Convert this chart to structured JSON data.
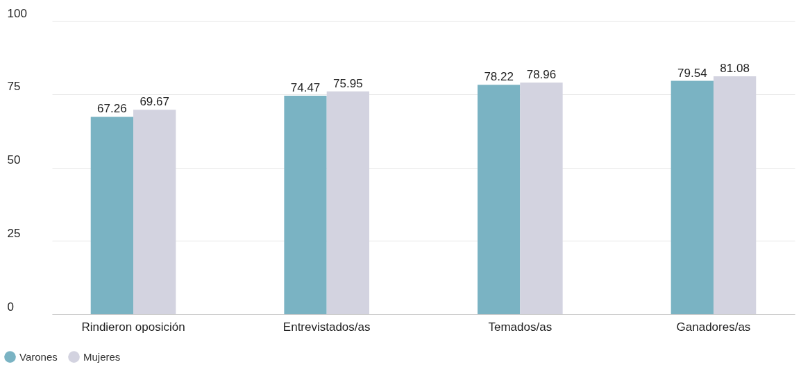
{
  "chart_data": {
    "type": "bar",
    "categories": [
      "Rindieron oposición",
      "Entrevistados/as",
      "Temados/as",
      "Ganadores/as"
    ],
    "series": [
      {
        "name": "Varones",
        "color": "#7ab3c3",
        "values": [
          67.26,
          74.47,
          78.22,
          79.54
        ]
      },
      {
        "name": "Mujeres",
        "color": "#d3d3e0",
        "values": [
          69.67,
          75.95,
          78.96,
          81.08
        ]
      }
    ],
    "ylim": [
      0,
      100
    ],
    "yticks": [
      0,
      25,
      50,
      75,
      100
    ],
    "grid": "y",
    "legend": "bottom left",
    "data_labels": true
  }
}
